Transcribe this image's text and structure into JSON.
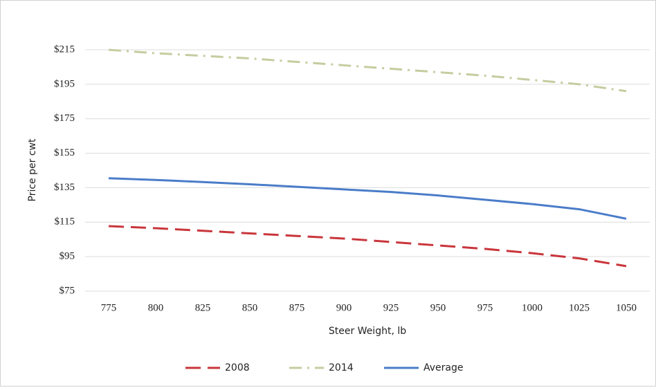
{
  "chart_data": {
    "type": "line",
    "x_label": "Steer Weight, lb",
    "y_label": "Price per cwt",
    "categories": [
      775,
      800,
      825,
      850,
      875,
      900,
      925,
      950,
      975,
      1000,
      1025,
      1050
    ],
    "series": [
      {
        "name": "2008",
        "color": "#c9353b",
        "dash": "22 10",
        "values": [
          112.7,
          111.5,
          110,
          108.5,
          107,
          105.5,
          103.5,
          101.5,
          99.5,
          97,
          94,
          89.5
        ]
      },
      {
        "name": "2014",
        "color": "#c5cc9f",
        "dash": "18 8 3 8",
        "values": [
          215,
          213,
          211.5,
          210,
          208,
          206,
          204,
          202,
          200,
          197.5,
          195,
          191
        ]
      },
      {
        "name": "Average",
        "color": "#4a7cc9",
        "dash": null,
        "values": [
          140.5,
          139.5,
          138.3,
          137,
          135.5,
          134,
          132.5,
          130.5,
          128,
          125.5,
          122.5,
          117
        ]
      }
    ],
    "ylim": [
      75,
      215
    ],
    "yticks": [
      {
        "value": 75,
        "label": "$75"
      },
      {
        "value": 95,
        "label": "$95"
      },
      {
        "value": 115,
        "label": "$115"
      },
      {
        "value": 135,
        "label": "$135"
      },
      {
        "value": 155,
        "label": "$155"
      },
      {
        "value": 175,
        "label": "$175"
      },
      {
        "value": 195,
        "label": "$195"
      },
      {
        "value": 215,
        "label": "$215"
      }
    ],
    "grid": true,
    "legend": "bottom"
  }
}
